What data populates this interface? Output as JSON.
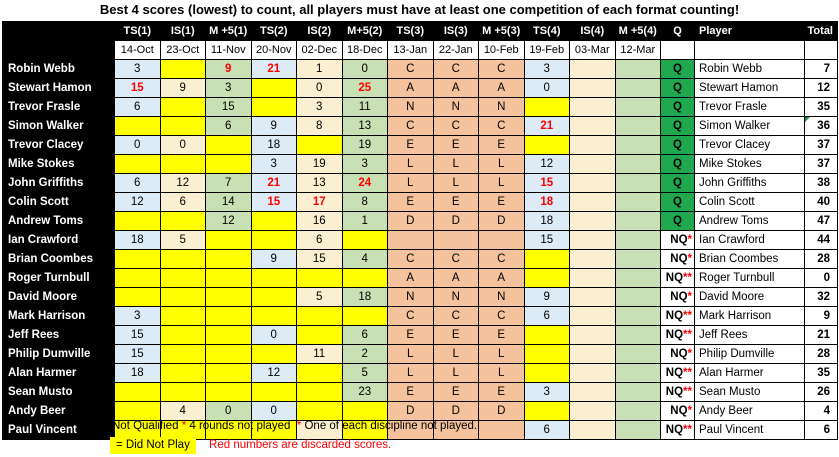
{
  "title": "Best 4 scores (lowest) to count, all players must have at least one competition of each format counting!",
  "colors": {
    "did_not_play_yellow": "#FFFF00",
    "ts_blue": "#DDEBF7",
    "is_cream": "#FBEFD2",
    "m5_green": "#C9DFB4",
    "format_letter_salmon": "#F4C29C",
    "qualified_green": "#1FA84D",
    "discarded_red": "#FF0000"
  },
  "table": {
    "q_header": "Q",
    "player_header": "Player",
    "total_header": "Total",
    "columns": [
      {
        "label": "TS(1)",
        "date": "14-Oct"
      },
      {
        "label": "IS(1)",
        "date": "23-Oct"
      },
      {
        "label": "M +5(1)",
        "date": "11-Nov"
      },
      {
        "label": "TS(2)",
        "date": "20-Nov"
      },
      {
        "label": "IS(2)",
        "date": "02-Dec"
      },
      {
        "label": "M+5(2)",
        "date": "18-Dec"
      },
      {
        "label": "TS(3)",
        "date": "13-Jan"
      },
      {
        "label": "IS(3)",
        "date": "22-Jan"
      },
      {
        "label": "M +5(3)",
        "date": "10-Feb"
      },
      {
        "label": "TS(4)",
        "date": "19-Feb"
      },
      {
        "label": "IS(4)",
        "date": "03-Mar"
      },
      {
        "label": "M +5(4)",
        "date": "12-Mar"
      }
    ],
    "rows": [
      {
        "name": "Robin Webb",
        "q": "Q",
        "total": "7",
        "cells": [
          {
            "v": "3",
            "bg": "ts"
          },
          {
            "bg": "dnp"
          },
          {
            "v": "9",
            "bg": "m5",
            "red": true
          },
          {
            "v": "21",
            "bg": "ts",
            "red": true
          },
          {
            "v": "1",
            "bg": "is"
          },
          {
            "v": "0",
            "bg": "m5"
          },
          {
            "v": "C",
            "bg": "fmt"
          },
          {
            "v": "C",
            "bg": "fmt"
          },
          {
            "v": "C",
            "bg": "fmt"
          },
          {
            "v": "3",
            "bg": "ts"
          },
          {
            "bg": "is"
          },
          {
            "bg": "m5"
          }
        ]
      },
      {
        "name": "Stewart Hamon",
        "q": "Q",
        "total": "12",
        "cells": [
          {
            "v": "15",
            "bg": "ts",
            "red": true
          },
          {
            "v": "9",
            "bg": "is"
          },
          {
            "v": "3",
            "bg": "m5"
          },
          {
            "bg": "dnp"
          },
          {
            "v": "0",
            "bg": "is"
          },
          {
            "v": "25",
            "bg": "m5",
            "red": true
          },
          {
            "v": "A",
            "bg": "fmt"
          },
          {
            "v": "A",
            "bg": "fmt"
          },
          {
            "v": "A",
            "bg": "fmt"
          },
          {
            "v": "0",
            "bg": "ts"
          },
          {
            "bg": "is"
          },
          {
            "bg": "m5"
          }
        ]
      },
      {
        "name": "Trevor Frasle",
        "q": "Q",
        "total": "35",
        "cells": [
          {
            "v": "6",
            "bg": "ts"
          },
          {
            "bg": "dnp"
          },
          {
            "v": "15",
            "bg": "m5"
          },
          {
            "bg": "dnp"
          },
          {
            "v": "3",
            "bg": "is"
          },
          {
            "v": "11",
            "bg": "m5"
          },
          {
            "v": "N",
            "bg": "fmt"
          },
          {
            "v": "N",
            "bg": "fmt"
          },
          {
            "v": "N",
            "bg": "fmt"
          },
          {
            "bg": "dnp"
          },
          {
            "bg": "is"
          },
          {
            "bg": "m5"
          }
        ]
      },
      {
        "name": "Simon Walker",
        "q": "Q",
        "total": "36",
        "flag": true,
        "cells": [
          {
            "bg": "dnp"
          },
          {
            "bg": "dnp"
          },
          {
            "v": "6",
            "bg": "m5"
          },
          {
            "v": "9",
            "bg": "ts"
          },
          {
            "v": "8",
            "bg": "is"
          },
          {
            "v": "13",
            "bg": "m5"
          },
          {
            "v": "C",
            "bg": "fmt"
          },
          {
            "v": "C",
            "bg": "fmt"
          },
          {
            "v": "C",
            "bg": "fmt"
          },
          {
            "v": "21",
            "bg": "ts",
            "red": true
          },
          {
            "bg": "is"
          },
          {
            "bg": "m5"
          }
        ]
      },
      {
        "name": "Trevor Clacey",
        "q": "Q",
        "total": "37",
        "cells": [
          {
            "v": "0",
            "bg": "ts"
          },
          {
            "v": "0",
            "bg": "is"
          },
          {
            "bg": "dnp"
          },
          {
            "v": "18",
            "bg": "ts"
          },
          {
            "bg": "dnp"
          },
          {
            "v": "19",
            "bg": "m5"
          },
          {
            "v": "E",
            "bg": "fmt"
          },
          {
            "v": "E",
            "bg": "fmt"
          },
          {
            "v": "E",
            "bg": "fmt"
          },
          {
            "bg": "dnp"
          },
          {
            "bg": "is"
          },
          {
            "bg": "m5"
          }
        ]
      },
      {
        "name": "Mike Stokes",
        "q": "Q",
        "total": "37",
        "cells": [
          {
            "bg": "dnp"
          },
          {
            "bg": "dnp"
          },
          {
            "bg": "dnp"
          },
          {
            "v": "3",
            "bg": "ts"
          },
          {
            "v": "19",
            "bg": "is"
          },
          {
            "v": "3",
            "bg": "m5"
          },
          {
            "v": "L",
            "bg": "fmt"
          },
          {
            "v": "L",
            "bg": "fmt"
          },
          {
            "v": "L",
            "bg": "fmt"
          },
          {
            "v": "12",
            "bg": "ts"
          },
          {
            "bg": "is"
          },
          {
            "bg": "m5"
          }
        ]
      },
      {
        "name": "John Griffiths",
        "q": "Q",
        "total": "38",
        "cells": [
          {
            "v": "6",
            "bg": "ts"
          },
          {
            "v": "12",
            "bg": "is"
          },
          {
            "v": "7",
            "bg": "m5"
          },
          {
            "v": "21",
            "bg": "ts",
            "red": true
          },
          {
            "v": "13",
            "bg": "is"
          },
          {
            "v": "24",
            "bg": "m5",
            "red": true
          },
          {
            "v": "L",
            "bg": "fmt"
          },
          {
            "v": "L",
            "bg": "fmt"
          },
          {
            "v": "L",
            "bg": "fmt"
          },
          {
            "v": "15",
            "bg": "ts",
            "red": true
          },
          {
            "bg": "is"
          },
          {
            "bg": "m5"
          }
        ]
      },
      {
        "name": "Colin Scott",
        "q": "Q",
        "total": "40",
        "cells": [
          {
            "v": "12",
            "bg": "ts"
          },
          {
            "v": "6",
            "bg": "is"
          },
          {
            "v": "14",
            "bg": "m5"
          },
          {
            "v": "15",
            "bg": "ts",
            "red": true
          },
          {
            "v": "17",
            "bg": "is",
            "red": true
          },
          {
            "v": "8",
            "bg": "m5"
          },
          {
            "v": "E",
            "bg": "fmt"
          },
          {
            "v": "E",
            "bg": "fmt"
          },
          {
            "v": "E",
            "bg": "fmt"
          },
          {
            "v": "18",
            "bg": "ts",
            "red": true
          },
          {
            "bg": "is"
          },
          {
            "bg": "m5"
          }
        ]
      },
      {
        "name": "Andrew Toms",
        "q": "Q",
        "total": "47",
        "cells": [
          {
            "bg": "dnp"
          },
          {
            "bg": "dnp"
          },
          {
            "v": "12",
            "bg": "m5"
          },
          {
            "bg": "dnp"
          },
          {
            "v": "16",
            "bg": "is"
          },
          {
            "v": "1",
            "bg": "m5"
          },
          {
            "v": "D",
            "bg": "fmt"
          },
          {
            "v": "D",
            "bg": "fmt"
          },
          {
            "v": "D",
            "bg": "fmt"
          },
          {
            "v": "18",
            "bg": "ts"
          },
          {
            "bg": "is"
          },
          {
            "bg": "m5"
          }
        ]
      },
      {
        "name": "Ian Crawford",
        "q": "NQ",
        "stars": "*",
        "total": "44",
        "cells": [
          {
            "v": "18",
            "bg": "ts"
          },
          {
            "v": "5",
            "bg": "is"
          },
          {
            "bg": "dnp"
          },
          {
            "bg": "dnp"
          },
          {
            "v": "6",
            "bg": "is"
          },
          {
            "bg": "dnp"
          },
          {
            "bg": "fmt"
          },
          {
            "bg": "fmt"
          },
          {
            "bg": "fmt"
          },
          {
            "v": "15",
            "bg": "ts"
          },
          {
            "bg": "is"
          },
          {
            "bg": "m5"
          }
        ]
      },
      {
        "name": "Brian Coombes",
        "q": "NQ",
        "stars": "*",
        "total": "28",
        "cells": [
          {
            "bg": "dnp"
          },
          {
            "bg": "dnp"
          },
          {
            "bg": "dnp"
          },
          {
            "v": "9",
            "bg": "ts"
          },
          {
            "v": "15",
            "bg": "is"
          },
          {
            "v": "4",
            "bg": "m5"
          },
          {
            "v": "C",
            "bg": "fmt"
          },
          {
            "v": "C",
            "bg": "fmt"
          },
          {
            "v": "C",
            "bg": "fmt"
          },
          {
            "bg": "dnp"
          },
          {
            "bg": "is"
          },
          {
            "bg": "m5"
          }
        ]
      },
      {
        "name": "Roger Turnbull",
        "q": "NQ",
        "stars": "**",
        "total": "0",
        "cells": [
          {
            "bg": "dnp"
          },
          {
            "bg": "dnp"
          },
          {
            "bg": "dnp"
          },
          {
            "bg": "dnp"
          },
          {
            "bg": "dnp"
          },
          {
            "bg": "dnp"
          },
          {
            "v": "A",
            "bg": "fmt"
          },
          {
            "v": "A",
            "bg": "fmt"
          },
          {
            "v": "A",
            "bg": "fmt"
          },
          {
            "bg": "dnp"
          },
          {
            "bg": "is"
          },
          {
            "bg": "m5"
          }
        ]
      },
      {
        "name": "David Moore",
        "q": "NQ",
        "stars": "*",
        "total": "32",
        "cells": [
          {
            "bg": "dnp"
          },
          {
            "bg": "dnp"
          },
          {
            "bg": "dnp"
          },
          {
            "bg": "dnp"
          },
          {
            "v": "5",
            "bg": "is"
          },
          {
            "v": "18",
            "bg": "m5"
          },
          {
            "v": "N",
            "bg": "fmt"
          },
          {
            "v": "N",
            "bg": "fmt"
          },
          {
            "v": "N",
            "bg": "fmt"
          },
          {
            "v": "9",
            "bg": "ts"
          },
          {
            "bg": "is"
          },
          {
            "bg": "m5"
          }
        ]
      },
      {
        "name": "Mark Harrison",
        "q": "NQ",
        "stars": "**",
        "total": "9",
        "cells": [
          {
            "v": "3",
            "bg": "ts"
          },
          {
            "bg": "dnp"
          },
          {
            "bg": "dnp"
          },
          {
            "bg": "dnp"
          },
          {
            "bg": "dnp"
          },
          {
            "bg": "dnp"
          },
          {
            "v": "C",
            "bg": "fmt"
          },
          {
            "v": "C",
            "bg": "fmt"
          },
          {
            "v": "C",
            "bg": "fmt"
          },
          {
            "v": "6",
            "bg": "ts"
          },
          {
            "bg": "is"
          },
          {
            "bg": "m5"
          }
        ]
      },
      {
        "name": "Jeff Rees",
        "q": "NQ",
        "stars": "**",
        "total": "21",
        "cells": [
          {
            "v": "15",
            "bg": "ts"
          },
          {
            "bg": "dnp"
          },
          {
            "bg": "dnp"
          },
          {
            "v": "0",
            "bg": "ts"
          },
          {
            "bg": "dnp"
          },
          {
            "v": "6",
            "bg": "m5"
          },
          {
            "v": "E",
            "bg": "fmt"
          },
          {
            "v": "E",
            "bg": "fmt"
          },
          {
            "v": "E",
            "bg": "fmt"
          },
          {
            "bg": "dnp"
          },
          {
            "bg": "is"
          },
          {
            "bg": "m5"
          }
        ]
      },
      {
        "name": "Philip Dumville",
        "q": "NQ",
        "stars": "*",
        "total": "28",
        "cells": [
          {
            "v": "15",
            "bg": "ts"
          },
          {
            "bg": "dnp"
          },
          {
            "bg": "dnp"
          },
          {
            "bg": "dnp"
          },
          {
            "v": "11",
            "bg": "is"
          },
          {
            "v": "2",
            "bg": "m5"
          },
          {
            "v": "L",
            "bg": "fmt"
          },
          {
            "v": "L",
            "bg": "fmt"
          },
          {
            "v": "L",
            "bg": "fmt"
          },
          {
            "bg": "dnp"
          },
          {
            "bg": "is"
          },
          {
            "bg": "m5"
          }
        ]
      },
      {
        "name": "Alan Harmer",
        "q": "NQ",
        "stars": "**",
        "total": "35",
        "cells": [
          {
            "v": "18",
            "bg": "ts"
          },
          {
            "bg": "dnp"
          },
          {
            "bg": "dnp"
          },
          {
            "v": "12",
            "bg": "ts"
          },
          {
            "bg": "dnp"
          },
          {
            "v": "5",
            "bg": "m5"
          },
          {
            "v": "L",
            "bg": "fmt"
          },
          {
            "v": "L",
            "bg": "fmt"
          },
          {
            "v": "L",
            "bg": "fmt"
          },
          {
            "bg": "dnp"
          },
          {
            "bg": "is"
          },
          {
            "bg": "m5"
          }
        ]
      },
      {
        "name": "Sean Musto",
        "q": "NQ",
        "stars": "**",
        "total": "26",
        "cells": [
          {
            "bg": "dnp"
          },
          {
            "bg": "dnp"
          },
          {
            "bg": "dnp"
          },
          {
            "bg": "dnp"
          },
          {
            "bg": "dnp"
          },
          {
            "v": "23",
            "bg": "m5"
          },
          {
            "v": "E",
            "bg": "fmt"
          },
          {
            "v": "E",
            "bg": "fmt"
          },
          {
            "v": "E",
            "bg": "fmt"
          },
          {
            "v": "3",
            "bg": "ts"
          },
          {
            "bg": "is"
          },
          {
            "bg": "m5"
          }
        ]
      },
      {
        "name": "Andy Beer",
        "q": "NQ",
        "stars": "*",
        "total": "4",
        "cells": [
          {
            "bg": "dnp"
          },
          {
            "v": "4",
            "bg": "is"
          },
          {
            "v": "0",
            "bg": "m5"
          },
          {
            "v": "0",
            "bg": "ts"
          },
          {
            "bg": "dnp"
          },
          {
            "bg": "dnp"
          },
          {
            "v": "D",
            "bg": "fmt"
          },
          {
            "v": "D",
            "bg": "fmt"
          },
          {
            "v": "D",
            "bg": "fmt"
          },
          {
            "bg": "dnp"
          },
          {
            "bg": "is"
          },
          {
            "bg": "m5"
          }
        ]
      },
      {
        "name": "Paul Vincent",
        "q": "NQ",
        "stars": "**",
        "total": "6",
        "cells": [
          {
            "bg": "dnp"
          },
          {
            "bg": "dnp"
          },
          {
            "bg": "dnp"
          },
          {
            "bg": "dnp"
          },
          {
            "bg": "is"
          },
          {
            "bg": "dnp"
          },
          {
            "bg": "fmt"
          },
          {
            "bg": "fmt"
          },
          {
            "bg": "fmt"
          },
          {
            "v": "6",
            "bg": "ts"
          },
          {
            "bg": "is"
          },
          {
            "bg": "m5"
          }
        ]
      }
    ]
  },
  "footer": {
    "nq_label": "Not Qualified",
    "star1": "*",
    "nq_text1": "4 rounds not played",
    "star2": "*",
    "nq_text2": "One of each discipline not played.",
    "dnp_chip": "= Did Not Play",
    "red_note": "Red numbers are discarded scores."
  }
}
